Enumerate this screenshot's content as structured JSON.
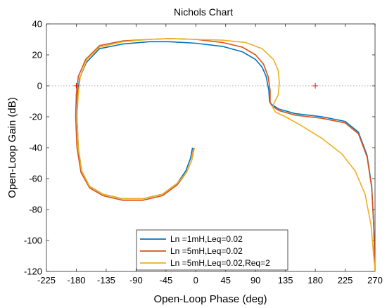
{
  "chart_data": {
    "type": "line",
    "title": "Nichols Chart",
    "xlabel": "Open-Loop Phase (deg)",
    "ylabel": "Open-Loop Gain (dB)",
    "xlim": [
      -225,
      270
    ],
    "ylim": [
      -120,
      40
    ],
    "xticks": [
      -225,
      -180,
      -135,
      -90,
      -45,
      0,
      45,
      90,
      135,
      180,
      225,
      270
    ],
    "yticks": [
      -120,
      -100,
      -80,
      -60,
      -40,
      -20,
      0,
      20,
      40
    ],
    "grid": "dotted line at 0 dB",
    "legend_position": "bottom-center",
    "critical_points": [
      {
        "x": -180,
        "y": 0
      },
      {
        "x": 180,
        "y": 0
      }
    ],
    "series": [
      {
        "name": "Ln =1mH,Leq=0.02",
        "color": "#0072BD",
        "points": [
          [
            -5,
            -40
          ],
          [
            -8,
            -47
          ],
          [
            -15,
            -55
          ],
          [
            -28,
            -63
          ],
          [
            -50,
            -70
          ],
          [
            -80,
            -73
          ],
          [
            -110,
            -73
          ],
          [
            -140,
            -70
          ],
          [
            -160,
            -65
          ],
          [
            -172,
            -55
          ],
          [
            -177,
            -40
          ],
          [
            -179,
            -20
          ],
          [
            -178,
            -5
          ],
          [
            -175,
            5
          ],
          [
            -165,
            15
          ],
          [
            -145,
            24
          ],
          [
            -110,
            27
          ],
          [
            -70,
            28.5
          ],
          [
            -40,
            28.5
          ],
          [
            0,
            27.5
          ],
          [
            40,
            25.5
          ],
          [
            70,
            22
          ],
          [
            90,
            17
          ],
          [
            100,
            12
          ],
          [
            106,
            6
          ],
          [
            110,
            -3
          ],
          [
            111,
            -10
          ],
          [
            114,
            -12
          ],
          [
            125,
            -15
          ],
          [
            150,
            -18
          ],
          [
            190,
            -20
          ],
          [
            225,
            -23
          ],
          [
            245,
            -30
          ],
          [
            258,
            -45
          ],
          [
            265,
            -65
          ],
          [
            268,
            -90
          ],
          [
            270,
            -120
          ]
        ]
      },
      {
        "name": "Ln =5mH,Leq=0.02",
        "color": "#D95319",
        "points": [
          [
            -3,
            -40
          ],
          [
            -6,
            -48
          ],
          [
            -14,
            -56
          ],
          [
            -28,
            -64
          ],
          [
            -50,
            -71
          ],
          [
            -80,
            -74
          ],
          [
            -110,
            -74
          ],
          [
            -140,
            -71
          ],
          [
            -160,
            -66
          ],
          [
            -173,
            -56
          ],
          [
            -179,
            -40
          ],
          [
            -181,
            -20
          ],
          [
            -180,
            -5
          ],
          [
            -177,
            6
          ],
          [
            -166,
            17
          ],
          [
            -145,
            26
          ],
          [
            -110,
            29
          ],
          [
            -70,
            30
          ],
          [
            -40,
            30.5
          ],
          [
            0,
            30
          ],
          [
            40,
            28
          ],
          [
            70,
            25
          ],
          [
            90,
            20
          ],
          [
            102,
            14
          ],
          [
            109,
            6
          ],
          [
            112,
            -3
          ],
          [
            112,
            -11
          ],
          [
            115,
            -13
          ],
          [
            125,
            -16
          ],
          [
            150,
            -19
          ],
          [
            190,
            -21
          ],
          [
            225,
            -24
          ],
          [
            245,
            -31
          ],
          [
            258,
            -46
          ],
          [
            265,
            -66
          ],
          [
            268,
            -90
          ],
          [
            270,
            -120
          ]
        ]
      },
      {
        "name": "Ln =5mH,Leq=0.02,Req=2",
        "color": "#EDB120",
        "points": [
          [
            -2,
            -40
          ],
          [
            -6,
            -48
          ],
          [
            -14,
            -56
          ],
          [
            -28,
            -63
          ],
          [
            -50,
            -70
          ],
          [
            -80,
            -73
          ],
          [
            -110,
            -73
          ],
          [
            -140,
            -70
          ],
          [
            -160,
            -65
          ],
          [
            -172,
            -55
          ],
          [
            -177,
            -40
          ],
          [
            -179,
            -20
          ],
          [
            -177,
            -5
          ],
          [
            -174,
            6
          ],
          [
            -164,
            17
          ],
          [
            -145,
            25
          ],
          [
            -110,
            28.5
          ],
          [
            -70,
            30
          ],
          [
            -40,
            30.5
          ],
          [
            0,
            30
          ],
          [
            40,
            29.5
          ],
          [
            75,
            28
          ],
          [
            100,
            24
          ],
          [
            117,
            17
          ],
          [
            124,
            10
          ],
          [
            126,
            2
          ],
          [
            124,
            -6
          ],
          [
            118,
            -11
          ],
          [
            116,
            -14
          ],
          [
            120,
            -17
          ],
          [
            135,
            -20
          ],
          [
            160,
            -26
          ],
          [
            190,
            -34
          ],
          [
            220,
            -44
          ],
          [
            240,
            -55
          ],
          [
            255,
            -70
          ],
          [
            264,
            -90
          ],
          [
            270,
            -120
          ]
        ]
      }
    ]
  }
}
